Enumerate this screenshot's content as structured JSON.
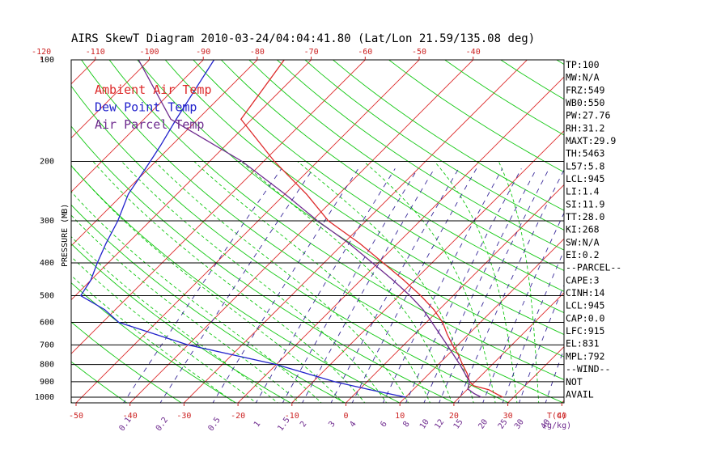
{
  "chart_data": {
    "type": "skewt",
    "title": "AIRS SkewT Diagram 2010-03-24/04:04:41.80 (Lat/Lon 21.59/135.08 deg)",
    "ylabel": "PRESSURE (MB)",
    "xunit_label": "T(C)",
    "mixing_unit_label": "(g/kg)",
    "pressure_ticks": [
      {
        "p": 100,
        "label": "100"
      },
      {
        "p": 200,
        "label": "200"
      },
      {
        "p": 300,
        "label": "300"
      },
      {
        "p": 400,
        "label": "400"
      },
      {
        "p": 500,
        "label": "500"
      },
      {
        "p": 600,
        "label": "600"
      },
      {
        "p": 700,
        "label": "700"
      },
      {
        "p": 800,
        "label": "800"
      },
      {
        "p": 900,
        "label": "900"
      },
      {
        "p": 1000,
        "label": "1000"
      }
    ],
    "pressure_lines": [
      1000,
      900,
      800,
      700,
      600,
      500,
      400,
      300,
      200,
      100
    ],
    "top_temp_labels": [
      -120,
      -110,
      -100,
      -90,
      -80,
      -70,
      -60,
      -50,
      -40
    ],
    "bottom_temp_labels": [
      -50,
      -40,
      -30,
      -20,
      -10,
      0,
      10,
      20,
      30,
      40
    ],
    "isotherm_range": [
      -160,
      40,
      10
    ],
    "mixing_ratio_labels": [
      "0.1",
      "0.2",
      "0.5",
      "1",
      "1.5",
      "2",
      "3",
      "4",
      "6",
      "8",
      "10",
      "12",
      "15",
      "20",
      "25",
      "30",
      "40"
    ],
    "mixing_ratio_values": [
      0.1,
      0.2,
      0.5,
      1,
      1.5,
      2,
      3,
      4,
      6,
      8,
      10,
      12,
      15,
      20,
      25,
      30,
      40
    ],
    "dry_adiabats_theta_K": [
      200,
      210,
      220,
      230,
      240,
      250,
      260,
      270,
      280,
      290,
      300,
      310,
      320,
      330,
      340,
      350,
      360,
      370,
      380,
      390,
      400,
      420,
      440,
      460,
      480,
      500,
      520,
      540
    ],
    "moist_adiabats_start_C": [
      -20,
      -16,
      -12,
      -8,
      -4,
      0,
      4,
      8,
      12,
      16,
      20,
      24,
      28,
      32,
      36
    ],
    "legend": [
      {
        "label": "Ambient Air Temp",
        "color": "#dd2a2a"
      },
      {
        "label": "Dew Point Temp",
        "color": "#2222cc"
      },
      {
        "label": "Air Parcel Temp",
        "color": "#6e2a8e"
      }
    ],
    "series": [
      {
        "name": "Ambient Air Temp",
        "color": "#dd2a2a",
        "points": [
          [
            100,
            -75
          ],
          [
            150,
            -72
          ],
          [
            200,
            -58
          ],
          [
            250,
            -46
          ],
          [
            300,
            -37
          ],
          [
            350,
            -27
          ],
          [
            400,
            -19
          ],
          [
            450,
            -12
          ],
          [
            500,
            -6
          ],
          [
            550,
            -1
          ],
          [
            600,
            3
          ],
          [
            650,
            6
          ],
          [
            700,
            9
          ],
          [
            750,
            12
          ],
          [
            800,
            14.5
          ],
          [
            850,
            17
          ],
          [
            900,
            19
          ],
          [
            925,
            20.5
          ],
          [
            950,
            24
          ],
          [
            975,
            26
          ],
          [
            1000,
            28
          ]
        ]
      },
      {
        "name": "Dew Point Temp",
        "color": "#2222cc",
        "points": [
          [
            100,
            -88
          ],
          [
            150,
            -84
          ],
          [
            180,
            -82
          ],
          [
            200,
            -81
          ],
          [
            250,
            -79
          ],
          [
            300,
            -76
          ],
          [
            350,
            -74
          ],
          [
            400,
            -72
          ],
          [
            450,
            -70
          ],
          [
            500,
            -69
          ],
          [
            550,
            -62
          ],
          [
            600,
            -57
          ],
          [
            700,
            -40
          ],
          [
            800,
            -20
          ],
          [
            900,
            -6
          ],
          [
            950,
            2
          ],
          [
            975,
            6
          ],
          [
            1000,
            10
          ]
        ]
      },
      {
        "name": "Air Parcel Temp",
        "color": "#6e2a8e",
        "points": [
          [
            100,
            -102
          ],
          [
            150,
            -85
          ],
          [
            200,
            -64
          ],
          [
            250,
            -50
          ],
          [
            300,
            -39
          ],
          [
            350,
            -29
          ],
          [
            400,
            -21
          ],
          [
            450,
            -14
          ],
          [
            500,
            -8
          ],
          [
            550,
            -3
          ],
          [
            600,
            1
          ],
          [
            700,
            8
          ],
          [
            800,
            14
          ],
          [
            900,
            19
          ],
          [
            945,
            20
          ],
          [
            975,
            22
          ],
          [
            1000,
            24
          ]
        ]
      }
    ],
    "stats": [
      "TP:100",
      "MW:N/A",
      "FRZ:549",
      "WB0:550",
      "PW:27.76",
      "RH:31.2",
      "MAXT:29.9",
      "TH:5463",
      "L57:5.8",
      "LCL:945",
      "LI:1.4",
      "SI:11.9",
      "TT:28.0",
      "KI:268",
      "SW:N/A",
      "EI:0.2",
      "--PARCEL--",
      "CAPE:3",
      "CINH:14",
      "LCL:945",
      "CAP:0.0",
      "LFC:915",
      "EL:831",
      "MPL:792",
      "--WIND--",
      "NOT",
      "AVAIL"
    ]
  },
  "colors": {
    "frame": "#000000",
    "isotherm": "#dd2a2a",
    "dry_adiabat": "#14c814",
    "moist_adiabat": "#14c814",
    "mixing_ratio": "#3a2a9a",
    "temp_label": "#cc2222",
    "mixing_label": "#6e2a8e"
  }
}
